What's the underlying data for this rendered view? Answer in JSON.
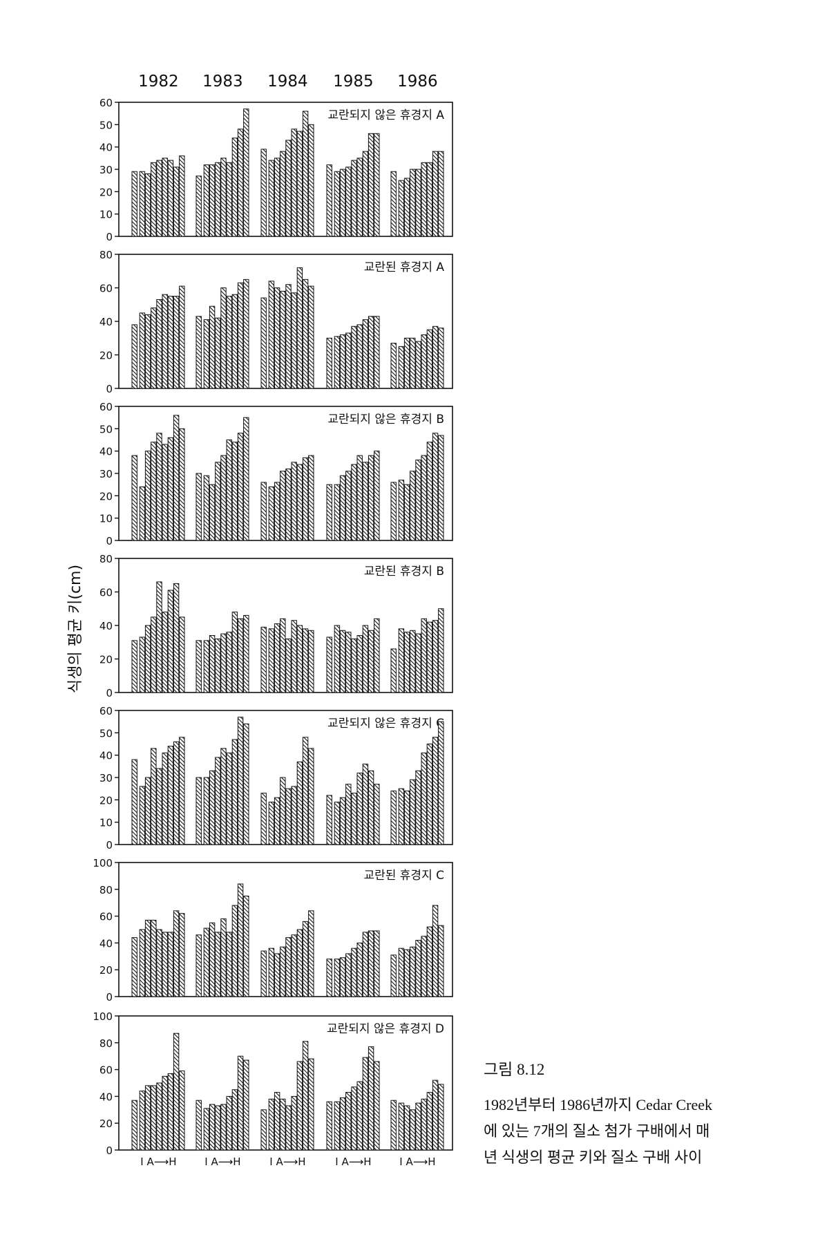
{
  "figure": {
    "years": [
      "1982",
      "1983",
      "1984",
      "1985",
      "1986"
    ],
    "ylabel": "식생의 평균 키(cm)",
    "x_tick_label": "I A⟶H"
  },
  "caption": {
    "title": "그림 8.12",
    "lines": [
      "1982년부터 1986년까지 Cedar Creek",
      "에 있는 7개의 질소 첨가 구배에서 매",
      "년 식생의 평균 키와 질소 구배 사이"
    ]
  },
  "colors": {
    "ink": "#111111",
    "background": "#ffffff"
  },
  "chart_data": [
    {
      "type": "bar",
      "title": "교란되지 않은 휴경지 A",
      "categories": [
        "I",
        "A",
        "B",
        "C",
        "D",
        "E",
        "F",
        "G",
        "H"
      ],
      "ylim": [
        0,
        60
      ],
      "yticks": [
        0,
        10,
        20,
        30,
        40,
        50,
        60
      ],
      "series": [
        {
          "name": "1982",
          "values": [
            29,
            29,
            28,
            33,
            34,
            35,
            34,
            31,
            36
          ]
        },
        {
          "name": "1983",
          "values": [
            27,
            32,
            32,
            33,
            35,
            33,
            44,
            48,
            57
          ]
        },
        {
          "name": "1984",
          "values": [
            39,
            34,
            35,
            38,
            43,
            48,
            47,
            56,
            50
          ]
        },
        {
          "name": "1985",
          "values": [
            32,
            29,
            30,
            31,
            34,
            35,
            38,
            46,
            46
          ]
        },
        {
          "name": "1986",
          "values": [
            29,
            25,
            26,
            30,
            30,
            33,
            33,
            38,
            38
          ]
        }
      ]
    },
    {
      "type": "bar",
      "title": "교란된 휴경지 A",
      "categories": [
        "I",
        "A",
        "B",
        "C",
        "D",
        "E",
        "F",
        "G",
        "H"
      ],
      "ylim": [
        0,
        80
      ],
      "yticks": [
        0,
        20,
        40,
        60,
        80
      ],
      "series": [
        {
          "name": "1982",
          "values": [
            38,
            45,
            44,
            48,
            53,
            56,
            55,
            55,
            61
          ]
        },
        {
          "name": "1983",
          "values": [
            43,
            41,
            49,
            42,
            60,
            55,
            56,
            63,
            65
          ]
        },
        {
          "name": "1984",
          "values": [
            54,
            64,
            60,
            58,
            62,
            57,
            72,
            65,
            61
          ]
        },
        {
          "name": "1985",
          "values": [
            30,
            31,
            32,
            33,
            37,
            38,
            41,
            43,
            43
          ]
        },
        {
          "name": "1986",
          "values": [
            27,
            25,
            30,
            30,
            28,
            32,
            35,
            37,
            36
          ]
        }
      ]
    },
    {
      "type": "bar",
      "title": "교란되지 않은 휴경지 B",
      "categories": [
        "I",
        "A",
        "B",
        "C",
        "D",
        "E",
        "F",
        "G",
        "H"
      ],
      "ylim": [
        0,
        60
      ],
      "yticks": [
        0,
        10,
        20,
        30,
        40,
        50,
        60
      ],
      "series": [
        {
          "name": "1982",
          "values": [
            38,
            24,
            40,
            44,
            48,
            43,
            46,
            56,
            50
          ]
        },
        {
          "name": "1983",
          "values": [
            30,
            29,
            25,
            35,
            38,
            45,
            44,
            48,
            55
          ]
        },
        {
          "name": "1984",
          "values": [
            26,
            24,
            26,
            31,
            32,
            35,
            34,
            37,
            38
          ]
        },
        {
          "name": "1985",
          "values": [
            25,
            25,
            29,
            31,
            34,
            38,
            35,
            38,
            40
          ]
        },
        {
          "name": "1986",
          "values": [
            26,
            27,
            25,
            31,
            36,
            38,
            44,
            48,
            47
          ]
        }
      ]
    },
    {
      "type": "bar",
      "title": "교란된 휴경지 B",
      "categories": [
        "I",
        "A",
        "B",
        "C",
        "D",
        "E",
        "F",
        "G",
        "H"
      ],
      "ylim": [
        0,
        80
      ],
      "yticks": [
        0,
        20,
        40,
        60,
        80
      ],
      "series": [
        {
          "name": "1982",
          "values": [
            31,
            33,
            40,
            45,
            66,
            48,
            61,
            65,
            45
          ]
        },
        {
          "name": "1983",
          "values": [
            31,
            31,
            34,
            32,
            35,
            36,
            48,
            44,
            46
          ]
        },
        {
          "name": "1984",
          "values": [
            39,
            38,
            41,
            44,
            32,
            43,
            40,
            38,
            37
          ]
        },
        {
          "name": "1985",
          "values": [
            33,
            40,
            37,
            36,
            32,
            34,
            40,
            37,
            44
          ]
        },
        {
          "name": "1986",
          "values": [
            26,
            38,
            36,
            37,
            35,
            44,
            42,
            43,
            50
          ]
        }
      ]
    },
    {
      "type": "bar",
      "title": "교란되지 않은 휴경지 C",
      "categories": [
        "I",
        "A",
        "B",
        "C",
        "D",
        "E",
        "F",
        "G",
        "H"
      ],
      "ylim": [
        0,
        60
      ],
      "yticks": [
        0,
        10,
        20,
        30,
        40,
        50,
        60
      ],
      "series": [
        {
          "name": "1982",
          "values": [
            38,
            26,
            30,
            43,
            34,
            41,
            44,
            46,
            48
          ]
        },
        {
          "name": "1983",
          "values": [
            30,
            30,
            33,
            39,
            43,
            41,
            47,
            57,
            54
          ]
        },
        {
          "name": "1984",
          "values": [
            23,
            19,
            21,
            30,
            25,
            26,
            37,
            48,
            43
          ]
        },
        {
          "name": "1985",
          "values": [
            22,
            19,
            21,
            27,
            23,
            32,
            36,
            33,
            27
          ]
        },
        {
          "name": "1986",
          "values": [
            24,
            25,
            24,
            29,
            33,
            41,
            45,
            48,
            55
          ]
        }
      ]
    },
    {
      "type": "bar",
      "title": "교란된 휴경지 C",
      "categories": [
        "I",
        "A",
        "B",
        "C",
        "D",
        "E",
        "F",
        "G",
        "H"
      ],
      "ylim": [
        0,
        100
      ],
      "yticks": [
        0,
        20,
        40,
        60,
        80,
        100
      ],
      "series": [
        {
          "name": "1982",
          "values": [
            44,
            50,
            57,
            57,
            50,
            48,
            48,
            64,
            62
          ]
        },
        {
          "name": "1983",
          "values": [
            46,
            51,
            55,
            48,
            58,
            48,
            68,
            84,
            75
          ]
        },
        {
          "name": "1984",
          "values": [
            34,
            36,
            32,
            37,
            44,
            46,
            50,
            56,
            64
          ]
        },
        {
          "name": "1985",
          "values": [
            28,
            28,
            29,
            32,
            36,
            40,
            48,
            49,
            49
          ]
        },
        {
          "name": "1986",
          "values": [
            31,
            36,
            35,
            37,
            42,
            45,
            52,
            68,
            53
          ]
        }
      ]
    },
    {
      "type": "bar",
      "title": "교란되지 않은 휴경지 D",
      "categories": [
        "I",
        "A",
        "B",
        "C",
        "D",
        "E",
        "F",
        "G",
        "H"
      ],
      "ylim": [
        0,
        100
      ],
      "yticks": [
        0,
        20,
        40,
        60,
        80,
        100
      ],
      "series": [
        {
          "name": "1982",
          "values": [
            37,
            44,
            48,
            48,
            50,
            55,
            57,
            87,
            59
          ]
        },
        {
          "name": "1983",
          "values": [
            37,
            31,
            34,
            33,
            34,
            40,
            45,
            70,
            67
          ]
        },
        {
          "name": "1984",
          "values": [
            30,
            38,
            43,
            38,
            33,
            40,
            66,
            81,
            68
          ]
        },
        {
          "name": "1985",
          "values": [
            36,
            36,
            39,
            43,
            47,
            51,
            69,
            77,
            66
          ]
        },
        {
          "name": "1986",
          "values": [
            37,
            35,
            33,
            30,
            35,
            38,
            43,
            52,
            49
          ]
        }
      ]
    }
  ]
}
